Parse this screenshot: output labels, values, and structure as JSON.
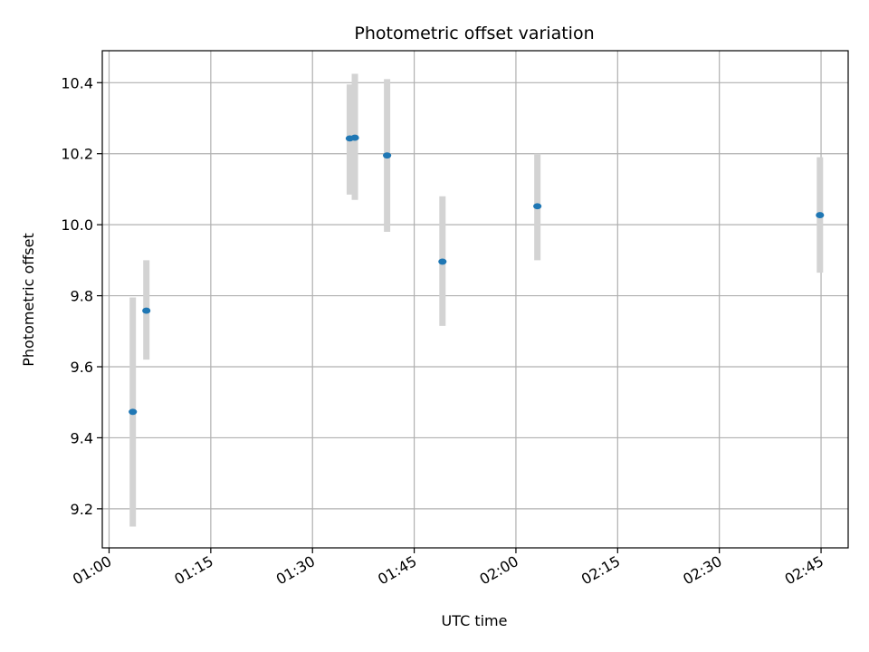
{
  "chart_data": {
    "type": "scatter",
    "title": "Photometric offset variation",
    "xlabel": "UTC time",
    "ylabel": "Photometric offset",
    "xlim": [
      "00:59:00",
      "02:49:00"
    ],
    "ylim": [
      9.09,
      10.49
    ],
    "grid": true,
    "x_tick_labels": [
      "01:00",
      "01:15",
      "01:30",
      "01:45",
      "02:00",
      "02:15",
      "02:30",
      "02:45"
    ],
    "y_tick_labels": [
      "9.2",
      "9.4",
      "9.6",
      "9.8",
      "10.0",
      "10.2",
      "10.4"
    ],
    "colors": {
      "points": "#1f77b4",
      "error_bars": "#d3d3d3",
      "grid": "#b0b0b0"
    },
    "points": [
      {
        "x": "01:03:30",
        "y": 9.473,
        "err_low": 9.15,
        "err_high": 9.795
      },
      {
        "x": "01:05:30",
        "y": 9.758,
        "err_low": 9.62,
        "err_high": 9.9
      },
      {
        "x": "01:35:30",
        "y": 10.243,
        "err_low": 10.085,
        "err_high": 10.395
      },
      {
        "x": "01:36:15",
        "y": 10.245,
        "err_low": 10.07,
        "err_high": 10.425
      },
      {
        "x": "01:41:00",
        "y": 10.195,
        "err_low": 9.98,
        "err_high": 10.41
      },
      {
        "x": "01:49:10",
        "y": 9.896,
        "err_low": 9.715,
        "err_high": 10.08
      },
      {
        "x": "02:03:10",
        "y": 10.052,
        "err_low": 9.9,
        "err_high": 10.2
      },
      {
        "x": "02:44:50",
        "y": 10.027,
        "err_low": 9.865,
        "err_high": 10.19
      }
    ]
  }
}
